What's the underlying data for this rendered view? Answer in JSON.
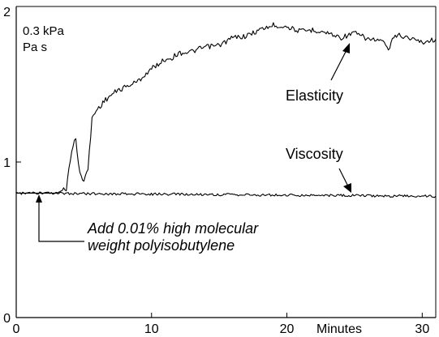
{
  "chart_data": {
    "type": "line",
    "title": "",
    "xlabel": "Minutes",
    "ylabel": "",
    "y_units": [
      "0.3 kPa",
      "Pa s"
    ],
    "xlim": [
      0,
      31
    ],
    "ylim": [
      0,
      2
    ],
    "x_ticks": [
      {
        "value": 0,
        "label": "0"
      },
      {
        "value": 10,
        "label": "10"
      },
      {
        "value": 20,
        "label": "20"
      },
      {
        "value": 30,
        "label": "30"
      }
    ],
    "y_ticks": [
      {
        "value": 0,
        "label": "0"
      },
      {
        "value": 1,
        "label": "1"
      },
      {
        "value": 2,
        "label": "2"
      }
    ],
    "grid": false,
    "series": [
      {
        "name": "Elasticity",
        "color": "#000000",
        "x": [
          0,
          1,
          2,
          3,
          3.7,
          4.1,
          4.4,
          4.7,
          5.0,
          5.3,
          5.6,
          5.9,
          6.2,
          6.6,
          7.0,
          7.5,
          8,
          8.5,
          9,
          9.5,
          10,
          10.5,
          11,
          11.5,
          12,
          13,
          14,
          15,
          16,
          17,
          18,
          19,
          20,
          21,
          22,
          23,
          24,
          25,
          26,
          27,
          27.5,
          28,
          29,
          30,
          31
        ],
        "y": [
          0.8,
          0.8,
          0.8,
          0.8,
          0.83,
          1.08,
          1.15,
          0.92,
          0.89,
          0.95,
          1.28,
          1.33,
          1.36,
          1.4,
          1.43,
          1.46,
          1.48,
          1.5,
          1.52,
          1.56,
          1.6,
          1.63,
          1.66,
          1.67,
          1.7,
          1.71,
          1.74,
          1.75,
          1.8,
          1.81,
          1.85,
          1.88,
          1.87,
          1.84,
          1.85,
          1.83,
          1.8,
          1.83,
          1.79,
          1.78,
          1.72,
          1.82,
          1.8,
          1.77,
          1.79
        ]
      },
      {
        "name": "Viscosity",
        "color": "#000000",
        "x": [
          0,
          31
        ],
        "y": [
          0.8,
          0.78
        ]
      }
    ],
    "annotations": {
      "elasticity_label": "Elasticity",
      "viscosity_label": "Viscosity",
      "note_line1": "Add 0.01% high molecular",
      "note_line2": "weight polyisobutylene"
    }
  }
}
